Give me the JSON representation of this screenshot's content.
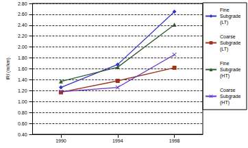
{
  "chart_data": {
    "type": "line",
    "y_label": "IRI (m/km)",
    "categories": [
      "1990",
      "1994",
      "1998"
    ],
    "series": [
      {
        "name": "Fine Subgrade (LT)",
        "color": "#3333cc",
        "marker": "diamond",
        "values": [
          1.26,
          1.68,
          2.65
        ]
      },
      {
        "name": "Coarse Subgrade (LT)",
        "color": "#a0301c",
        "marker": "square",
        "values": [
          1.17,
          1.38,
          1.62
        ]
      },
      {
        "name": "Fine Subgrade (HT)",
        "color": "#2f5a2f",
        "marker": "triangle",
        "values": [
          1.37,
          1.63,
          2.41
        ]
      },
      {
        "name": "Coarse Subgrade (HT)",
        "color": "#6633cc",
        "marker": "x",
        "values": [
          1.18,
          1.26,
          1.86
        ]
      }
    ],
    "ylim": [
      0.4,
      2.8
    ],
    "yticks": [
      {
        "value": 0.4,
        "label": "0.40"
      },
      {
        "value": 0.6,
        "label": "0.60"
      },
      {
        "value": 0.8,
        "label": "0.80"
      },
      {
        "value": 1.0,
        "label": "1.00"
      },
      {
        "value": 1.2,
        "label": "1.20"
      },
      {
        "value": 1.4,
        "label": "1.40"
      },
      {
        "value": 1.6,
        "label": "1.60"
      },
      {
        "value": 1.8,
        "label": "1.80"
      },
      {
        "value": 2.0,
        "label": "2.00"
      },
      {
        "value": 2.2,
        "label": "2.20"
      },
      {
        "value": 2.4,
        "label": "2.40"
      },
      {
        "value": 2.6,
        "label": "2.60"
      },
      {
        "value": 2.8,
        "label": "2.80"
      }
    ],
    "grid": true,
    "legend": "right"
  }
}
